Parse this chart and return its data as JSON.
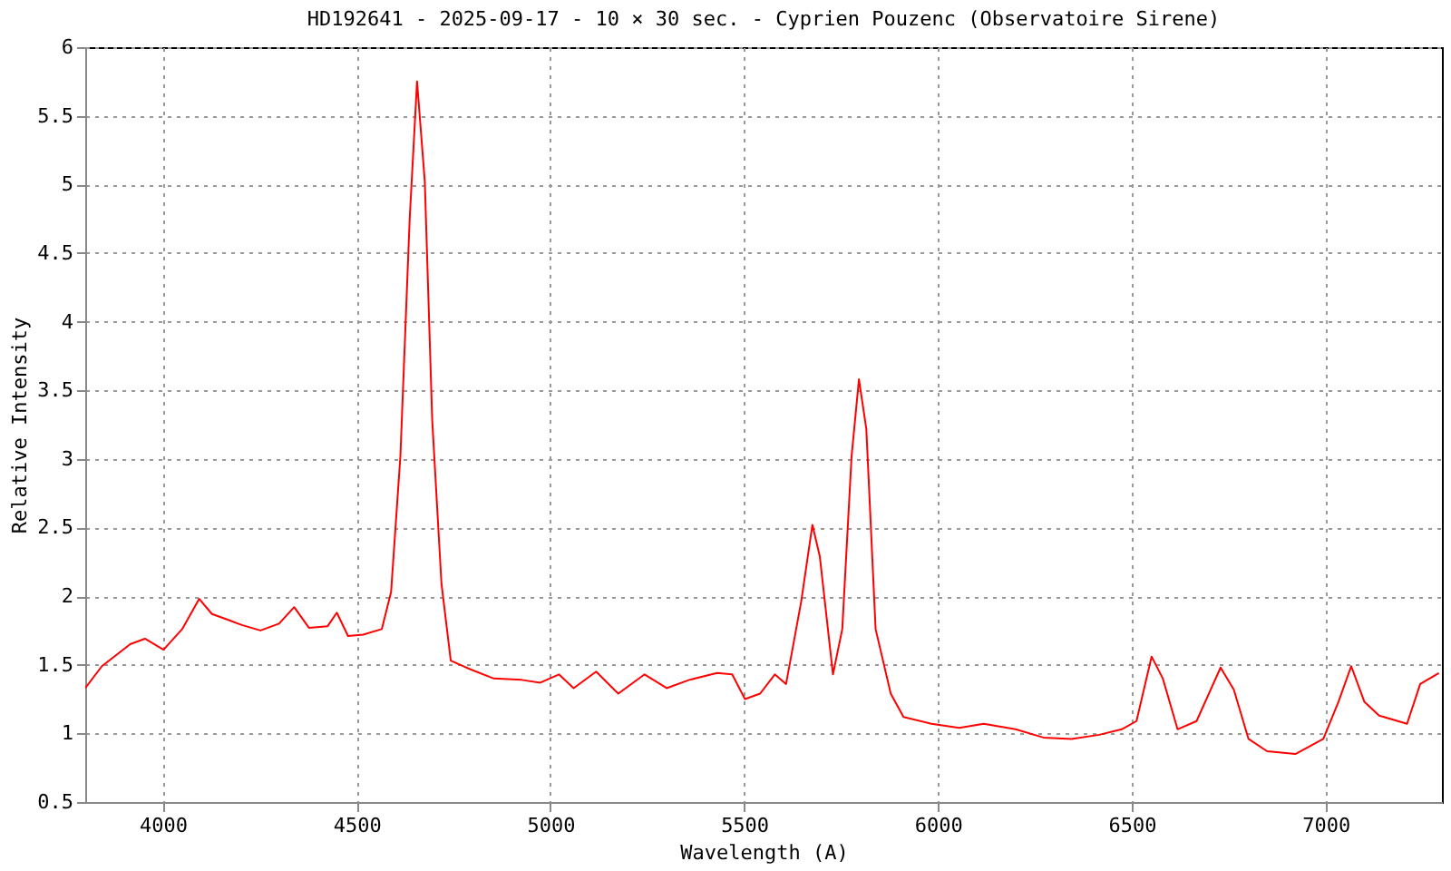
{
  "chart_data": {
    "type": "line",
    "title": "HD192641 - 2025-09-17 - 10 × 30 sec. - Cyprien Pouzenc (Observatoire Sirene)",
    "xlabel": "Wavelength (A)",
    "ylabel": "Relative Intensity",
    "xlim": [
      3800,
      7300
    ],
    "xticks": [
      4000,
      4500,
      5000,
      5500,
      6000,
      6500,
      7000
    ],
    "ylim": [
      0.5,
      6
    ],
    "yticks": [
      0.5,
      1,
      1.5,
      2,
      2.5,
      3,
      3.5,
      4,
      4.5,
      5,
      5.5,
      6
    ],
    "grid": true,
    "line_style": "solid",
    "series": [
      {
        "color": "#ff0000",
        "x": [
          3800,
          3843,
          3916,
          3954,
          4002,
          4050,
          4094,
          4127,
          4166,
          4204,
          4252,
          4300,
          4339,
          4377,
          4425,
          4449,
          4478,
          4517,
          4565,
          4589,
          4613,
          4637,
          4656,
          4676,
          4695,
          4719,
          4743,
          4791,
          4854,
          4926,
          4974,
          5022,
          5060,
          5118,
          5175,
          5243,
          5300,
          5358,
          5430,
          5469,
          5502,
          5541,
          5579,
          5608,
          5647,
          5676,
          5695,
          5729,
          5753,
          5777,
          5796,
          5815,
          5839,
          5878,
          5911,
          5983,
          6055,
          6118,
          6200,
          6272,
          6344,
          6416,
          6474,
          6512,
          6551,
          6580,
          6618,
          6667,
          6729,
          6763,
          6801,
          6849,
          6922,
          6994,
          7033,
          7066,
          7100,
          7138,
          7210,
          7244,
          7292
        ],
        "values": [
          1.33,
          1.49,
          1.65,
          1.69,
          1.61,
          1.76,
          1.98,
          1.87,
          1.83,
          1.79,
          1.75,
          1.8,
          1.92,
          1.77,
          1.78,
          1.88,
          1.71,
          1.72,
          1.76,
          2.03,
          3.02,
          4.75,
          5.75,
          5.02,
          3.29,
          2.09,
          1.53,
          1.47,
          1.4,
          1.39,
          1.37,
          1.43,
          1.33,
          1.45,
          1.29,
          1.43,
          1.33,
          1.39,
          1.44,
          1.43,
          1.25,
          1.29,
          1.43,
          1.36,
          1.96,
          2.52,
          2.29,
          1.43,
          1.76,
          3.02,
          3.58,
          3.22,
          1.76,
          1.29,
          1.12,
          1.07,
          1.04,
          1.07,
          1.03,
          0.97,
          0.96,
          0.99,
          1.03,
          1.09,
          1.56,
          1.4,
          1.03,
          1.09,
          1.48,
          1.32,
          0.96,
          0.87,
          0.85,
          0.96,
          1.23,
          1.49,
          1.23,
          1.13,
          1.07,
          1.36,
          1.44
        ]
      }
    ]
  }
}
